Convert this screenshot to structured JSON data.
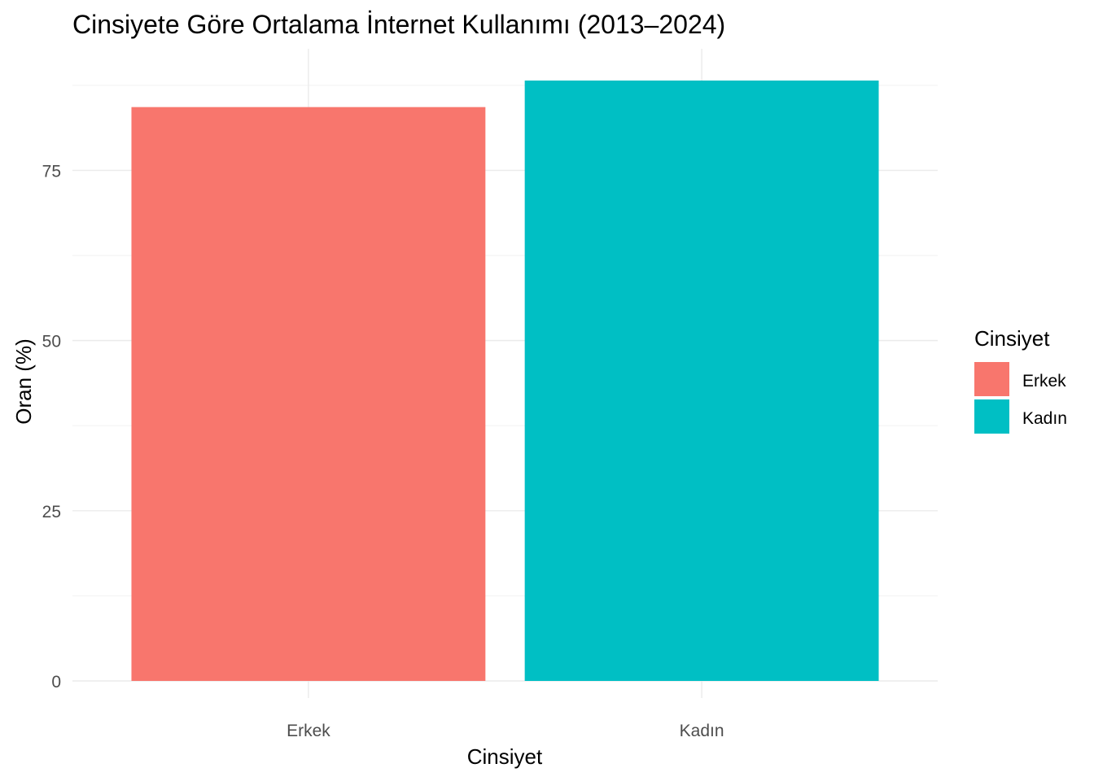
{
  "chart_data": {
    "type": "bar",
    "title": "Cinsiyete Göre Ortalama İnternet Kullanımı (2013–2024)",
    "xlabel": "Cinsiyet",
    "ylabel": "Oran (%)",
    "categories": [
      "Erkek",
      "Kadın"
    ],
    "values": [
      84.3,
      88.2
    ],
    "colors": [
      "#F8766D",
      "#00BFC4"
    ],
    "ylim": [
      0,
      88.2
    ],
    "yticks": [
      0,
      25,
      50,
      75
    ],
    "grid": true,
    "legend": {
      "title": "Cinsiyet",
      "placement": "right",
      "entries": [
        "Erkek",
        "Kadın"
      ]
    }
  }
}
